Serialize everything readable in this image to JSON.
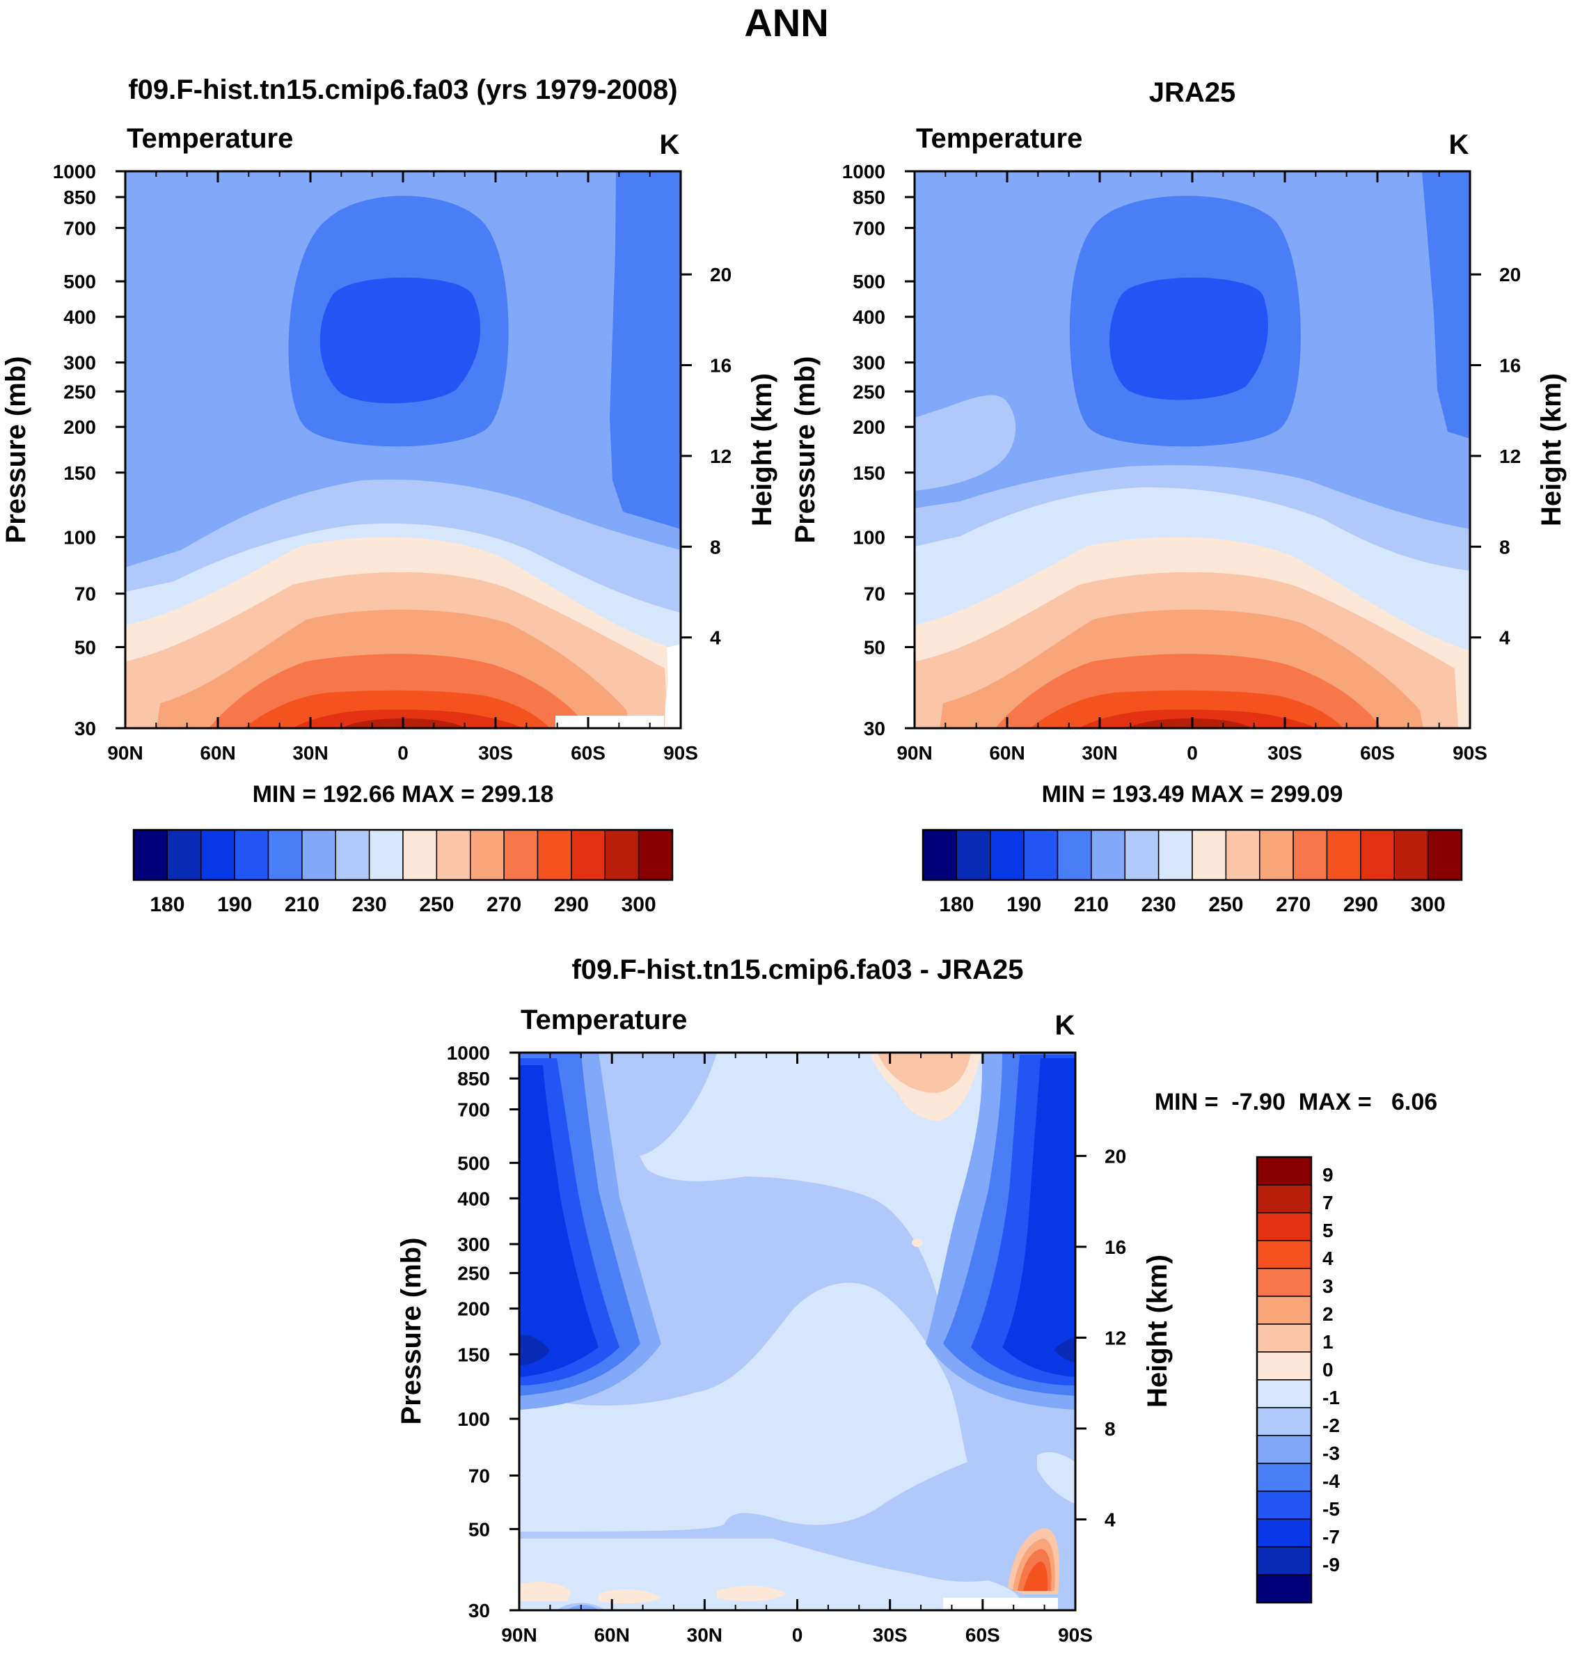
{
  "page_title": "ANN",
  "chart_data": [
    {
      "type": "heatmap",
      "id": "model",
      "title": "f09.F-hist.tn15.cmip6.fa03 (yrs 1979-2008)",
      "variable": "Temperature",
      "units": "K",
      "xlabel": "",
      "ylabel": "Pressure (mb)",
      "y2label": "Height (km)",
      "x_ticks": [
        "90N",
        "60N",
        "30N",
        "0",
        "30S",
        "60S",
        "90S"
      ],
      "x_values": [
        90,
        60,
        30,
        0,
        -30,
        -60,
        -90
      ],
      "y_ticks": [
        "30",
        "50",
        "70",
        "100",
        "150",
        "200",
        "250",
        "300",
        "400",
        "500",
        "700",
        "850",
        "1000"
      ],
      "y_values": [
        30,
        50,
        70,
        100,
        150,
        200,
        250,
        300,
        400,
        500,
        700,
        850,
        1000
      ],
      "y2_ticks": [
        "4",
        "8",
        "12",
        "16",
        "20"
      ],
      "y2_values": [
        4,
        8,
        12,
        16,
        20
      ],
      "ylim": [
        1000,
        30
      ],
      "stats": "MIN = 192.66  MAX = 299.18",
      "min": 192.66,
      "max": 299.18,
      "colorbar_labels": [
        "180",
        "190",
        "210",
        "230",
        "250",
        "270",
        "290",
        "300"
      ],
      "colorbar_levels": [
        180,
        185,
        190,
        200,
        210,
        220,
        230,
        240,
        250,
        260,
        270,
        280,
        290,
        295,
        300
      ]
    },
    {
      "type": "heatmap",
      "id": "obs",
      "title": "JRA25",
      "variable": "Temperature",
      "units": "K",
      "xlabel": "",
      "ylabel": "Pressure (mb)",
      "y2label": "Height (km)",
      "x_ticks": [
        "90N",
        "60N",
        "30N",
        "0",
        "30S",
        "60S",
        "90S"
      ],
      "x_values": [
        90,
        60,
        30,
        0,
        -30,
        -60,
        -90
      ],
      "y_ticks": [
        "30",
        "50",
        "70",
        "100",
        "150",
        "200",
        "250",
        "300",
        "400",
        "500",
        "700",
        "850",
        "1000"
      ],
      "y_values": [
        30,
        50,
        70,
        100,
        150,
        200,
        250,
        300,
        400,
        500,
        700,
        850,
        1000
      ],
      "y2_ticks": [
        "4",
        "8",
        "12",
        "16",
        "20"
      ],
      "y2_values": [
        4,
        8,
        12,
        16,
        20
      ],
      "ylim": [
        1000,
        30
      ],
      "stats": "MIN = 193.49  MAX = 299.09",
      "min": 193.49,
      "max": 299.09,
      "colorbar_labels": [
        "180",
        "190",
        "210",
        "230",
        "250",
        "270",
        "290",
        "300"
      ],
      "colorbar_levels": [
        180,
        185,
        190,
        200,
        210,
        220,
        230,
        240,
        250,
        260,
        270,
        280,
        290,
        295,
        300
      ]
    },
    {
      "type": "heatmap",
      "id": "diff",
      "title": "f09.F-hist.tn15.cmip6.fa03 - JRA25",
      "variable": "Temperature",
      "units": "K",
      "xlabel": "",
      "ylabel": "Pressure (mb)",
      "y2label": "Height (km)",
      "x_ticks": [
        "90N",
        "60N",
        "30N",
        "0",
        "30S",
        "60S",
        "90S"
      ],
      "x_values": [
        90,
        60,
        30,
        0,
        -30,
        -60,
        -90
      ],
      "y_ticks": [
        "30",
        "50",
        "70",
        "100",
        "150",
        "200",
        "250",
        "300",
        "400",
        "500",
        "700",
        "850",
        "1000"
      ],
      "y_values": [
        30,
        50,
        70,
        100,
        150,
        200,
        250,
        300,
        400,
        500,
        700,
        850,
        1000
      ],
      "y2_ticks": [
        "4",
        "8",
        "12",
        "16",
        "20"
      ],
      "y2_values": [
        4,
        8,
        12,
        16,
        20
      ],
      "ylim": [
        1000,
        30
      ],
      "stats": "MIN =  -7.90  MAX =   6.06",
      "min": -7.9,
      "max": 6.06,
      "colorbar_labels": [
        "9",
        "7",
        "5",
        "4",
        "3",
        "2",
        "1",
        "0",
        "-1",
        "-2",
        "-3",
        "-4",
        "-5",
        "-7",
        "-9"
      ],
      "colorbar_levels": [
        9,
        7,
        5,
        4,
        3,
        2,
        1,
        0,
        -1,
        -2,
        -3,
        -4,
        -5,
        -7,
        -9
      ]
    }
  ],
  "palette": [
    "#00007a",
    "#0a2bb5",
    "#0838e6",
    "#2156f5",
    "#4a7ef6",
    "#82a8f9",
    "#b0c9fb",
    "#d6e6fc",
    "#fde8d8",
    "#fbc6a8",
    "#f9a57a",
    "#f7774a",
    "#f4521f",
    "#e33212",
    "#b81f0a",
    "#8a0000"
  ]
}
